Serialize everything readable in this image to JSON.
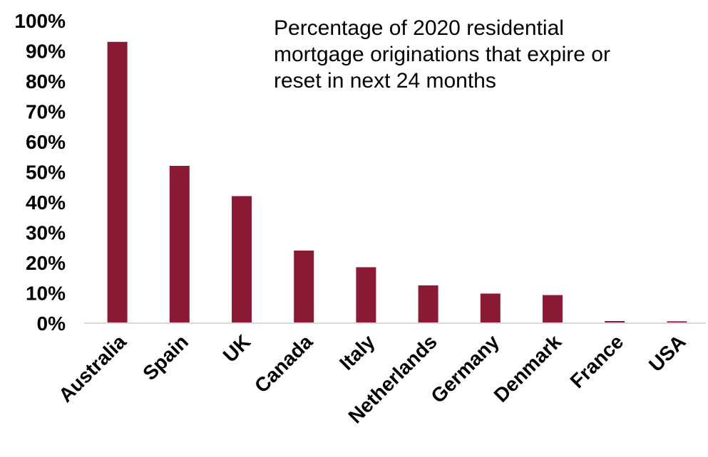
{
  "chart_data": {
    "type": "bar",
    "title_lines": [
      "Percentage of 2020 residential",
      "mortgage originations that expire or",
      "reset in next 24 months"
    ],
    "categories": [
      "Australia",
      "Spain",
      "UK",
      "Canada",
      "Italy",
      "Netherlands",
      "Germany",
      "Denmark",
      "France",
      "USA"
    ],
    "values": [
      93,
      52,
      42,
      24,
      18.5,
      12.5,
      9.8,
      9.3,
      0.7,
      0.6
    ],
    "ylim": [
      0,
      100
    ],
    "yticks": [
      "0%",
      "10%",
      "20%",
      "30%",
      "40%",
      "50%",
      "60%",
      "70%",
      "80%",
      "90%",
      "100%"
    ],
    "bar_color": "#8b1a35",
    "axis_color": "#d9d9d9",
    "grid": false,
    "legend": "none"
  }
}
